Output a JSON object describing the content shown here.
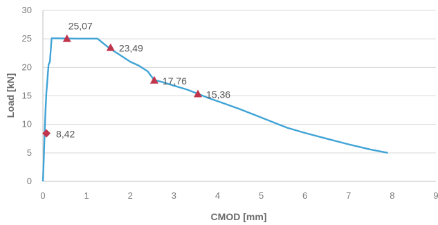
{
  "chart_data": {
    "type": "line",
    "xlabel": "CMOD [mm]",
    "ylabel": "Load  [kN]",
    "xlim": [
      0,
      9
    ],
    "ylim": [
      0,
      30
    ],
    "x_ticks": [
      "0",
      "1",
      "2",
      "3",
      "4",
      "5",
      "6",
      "7",
      "8",
      "9"
    ],
    "y_ticks": [
      "0",
      "5",
      "10",
      "15",
      "20",
      "25",
      "30"
    ],
    "grid": "horizontal",
    "line_color": "#3fa3d6",
    "marker_color": "#c0344c",
    "series": [
      {
        "x": [
          0.0,
          0.02,
          0.04,
          0.06,
          0.08,
          0.1,
          0.13,
          0.16,
          0.2,
          0.3,
          0.5,
          0.8,
          1.0,
          1.25,
          1.5,
          1.8,
          2.0,
          2.2,
          2.4,
          2.55,
          2.7,
          3.0,
          3.3,
          3.55,
          3.8,
          4.1,
          4.5,
          5.0,
          5.4,
          5.6,
          6.0,
          6.5,
          7.0,
          7.5,
          7.9
        ],
        "y": [
          0.0,
          4.0,
          8.42,
          12.5,
          15.5,
          17.5,
          20.5,
          21.0,
          25.1,
          25.1,
          25.07,
          25.05,
          25.05,
          25.05,
          23.49,
          22.0,
          21.0,
          20.3,
          19.3,
          17.76,
          17.5,
          16.8,
          16.1,
          15.36,
          14.6,
          13.8,
          12.7,
          11.2,
          10.0,
          9.4,
          8.5,
          7.5,
          6.5,
          5.6,
          5.0
        ]
      }
    ],
    "markers": [
      {
        "x": 0.08,
        "y": 8.42,
        "shape": "diamond",
        "label": "8,42"
      },
      {
        "x": 0.55,
        "y": 25.07,
        "shape": "triangle",
        "label": "25,07"
      },
      {
        "x": 1.55,
        "y": 23.49,
        "shape": "triangle",
        "label": "23,49"
      },
      {
        "x": 2.55,
        "y": 17.76,
        "shape": "triangle",
        "label": "17,76"
      },
      {
        "x": 3.55,
        "y": 15.36,
        "shape": "triangle",
        "label": "15,36"
      }
    ]
  }
}
